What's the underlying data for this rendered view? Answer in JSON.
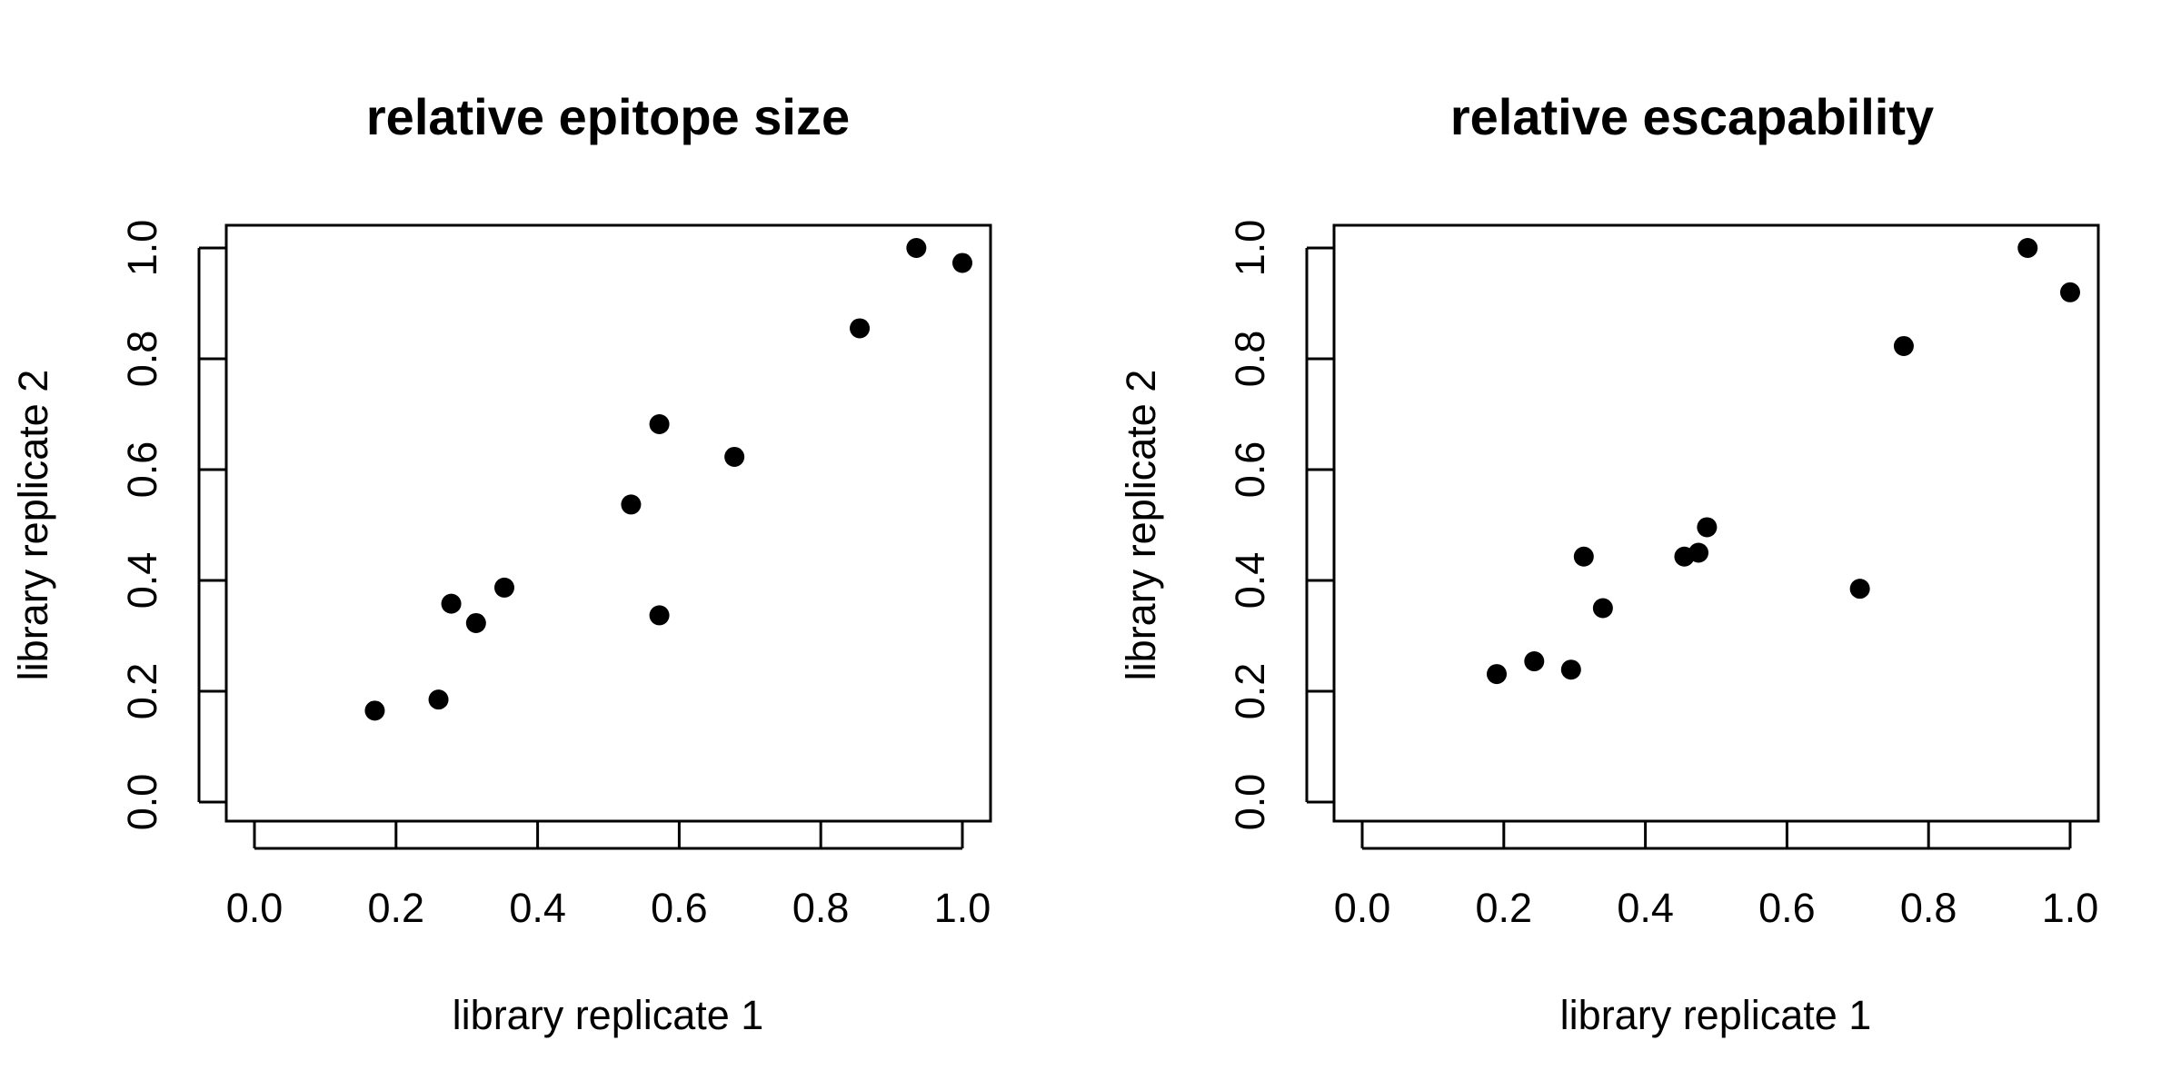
{
  "chart_data": [
    {
      "type": "scatter",
      "title": "relative epitope size",
      "xlabel": "library replicate 1",
      "ylabel": "library replicate 2",
      "xlim": [
        -0.04,
        1.04
      ],
      "ylim": [
        -0.04,
        1.04
      ],
      "xticks": [
        "0.0",
        "0.2",
        "0.4",
        "0.6",
        "0.8",
        "1.0"
      ],
      "yticks": [
        "0.0",
        "0.2",
        "0.4",
        "0.6",
        "0.8",
        "1.0"
      ],
      "grid": false,
      "points": [
        {
          "x": 0.17,
          "y": 0.165
        },
        {
          "x": 0.26,
          "y": 0.185
        },
        {
          "x": 0.278,
          "y": 0.358
        },
        {
          "x": 0.313,
          "y": 0.323
        },
        {
          "x": 0.353,
          "y": 0.387
        },
        {
          "x": 0.532,
          "y": 0.537
        },
        {
          "x": 0.572,
          "y": 0.682
        },
        {
          "x": 0.572,
          "y": 0.337
        },
        {
          "x": 0.678,
          "y": 0.623
        },
        {
          "x": 0.855,
          "y": 0.855
        },
        {
          "x": 0.935,
          "y": 1.0
        },
        {
          "x": 1.0,
          "y": 0.973
        }
      ]
    },
    {
      "type": "scatter",
      "title": "relative escapability",
      "xlabel": "library replicate 1",
      "ylabel": "library replicate 2",
      "xlim": [
        -0.04,
        1.04
      ],
      "ylim": [
        -0.04,
        1.04
      ],
      "xticks": [
        "0.0",
        "0.2",
        "0.4",
        "0.6",
        "0.8",
        "1.0"
      ],
      "yticks": [
        "0.0",
        "0.2",
        "0.4",
        "0.6",
        "0.8",
        "1.0"
      ],
      "grid": false,
      "points": [
        {
          "x": 0.19,
          "y": 0.231
        },
        {
          "x": 0.243,
          "y": 0.254
        },
        {
          "x": 0.295,
          "y": 0.239
        },
        {
          "x": 0.313,
          "y": 0.443
        },
        {
          "x": 0.34,
          "y": 0.35
        },
        {
          "x": 0.455,
          "y": 0.443
        },
        {
          "x": 0.475,
          "y": 0.45
        },
        {
          "x": 0.487,
          "y": 0.496
        },
        {
          "x": 0.703,
          "y": 0.385
        },
        {
          "x": 0.765,
          "y": 0.823
        },
        {
          "x": 0.94,
          "y": 1.0
        },
        {
          "x": 1.0,
          "y": 0.92
        }
      ]
    }
  ]
}
